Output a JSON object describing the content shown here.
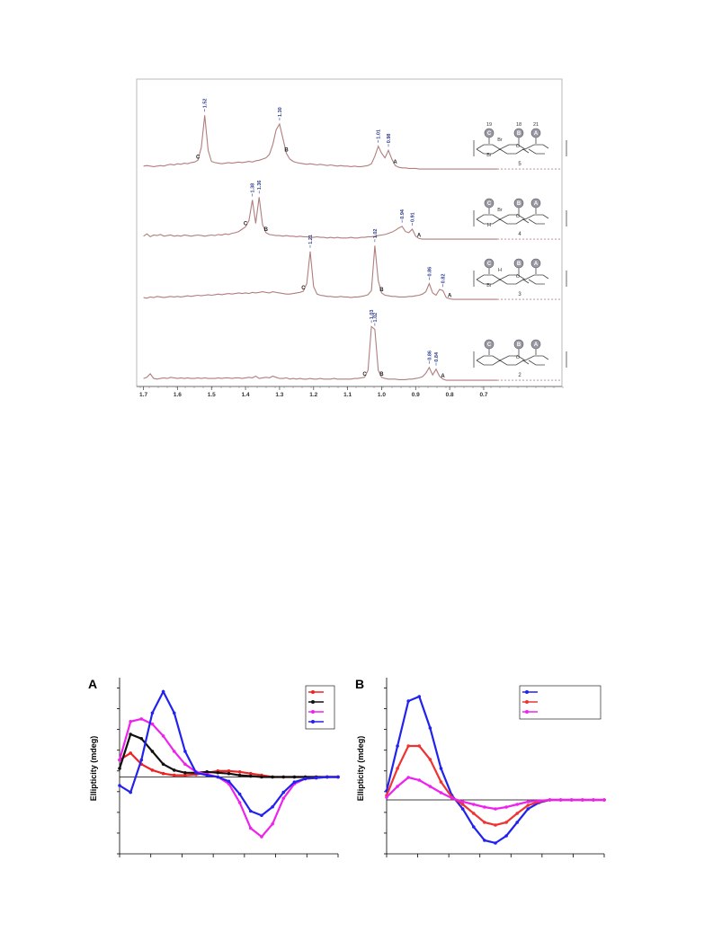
{
  "chart_data": [
    {
      "type": "line",
      "xlim": [
        1.72,
        0.47
      ],
      "xticks": [
        1.7,
        1.6,
        1.5,
        1.4,
        1.3,
        1.2,
        1.1,
        {
          "value": 1,
          "label": "1.0"
        },
        0.9,
        0.8,
        0.7
      ],
      "ylim": [
        0,
        100
      ],
      "structure_groups": [
        "C",
        "B",
        "A"
      ],
      "carbon_numbers": [
        19,
        18,
        21
      ],
      "x": [
        1.7,
        1.69,
        1.68,
        1.67,
        1.66,
        1.65,
        1.64,
        1.63,
        1.62,
        1.61,
        1.6,
        1.59,
        1.58,
        1.57,
        1.56,
        1.55,
        1.54,
        1.53,
        1.52,
        1.51,
        1.5,
        1.49,
        1.48,
        1.47,
        1.46,
        1.45,
        1.44,
        1.43,
        1.42,
        1.41,
        1.4,
        1.39,
        1.38,
        1.37,
        1.36,
        1.35,
        1.34,
        1.33,
        1.32,
        1.31,
        1.3,
        1.29,
        1.28,
        1.27,
        1.26,
        1.25,
        1.24,
        1.23,
        1.22,
        1.21,
        1.2,
        1.19,
        1.18,
        1.17,
        1.16,
        1.15,
        1.14,
        1.13,
        1.12,
        1.11,
        1.1,
        1.09,
        1.08,
        1.07,
        1.06,
        1.05,
        1.04,
        1.03,
        1.02,
        1.01,
        1,
        0.99,
        0.98,
        0.97,
        0.96,
        0.95,
        0.94,
        0.93,
        0.92,
        0.91,
        0.9,
        0.89,
        0.88,
        0.87,
        0.86,
        0.85,
        0.84,
        0.83,
        0.82,
        0.81,
        0.8,
        0.79,
        0.78,
        0.77,
        0.76,
        0.75,
        0.74,
        0.73,
        0.72,
        0.71,
        0.7,
        0.69,
        0.68,
        0.67,
        0.66
      ],
      "series": [
        {
          "compound": 5,
          "color": "#b07f7d",
          "substituents": [
            "Br",
            "Br",
            "O"
          ],
          "peaks": [
            1.52,
            {
              "value": 1.3,
              "label": "1.30"
            },
            1.01,
            0.98
          ],
          "assignments": [
            {
              "value": 1.54,
              "text": "C"
            },
            {
              "value": 1.28,
              "text": "B"
            },
            {
              "value": 0.96,
              "text": "A"
            }
          ],
          "values": [
            8,
            9,
            8,
            7,
            8,
            9,
            8,
            10,
            11,
            10,
            12,
            11,
            13,
            12,
            14,
            15,
            18,
            40,
            95,
            35,
            16,
            14,
            13,
            12,
            13,
            14,
            13,
            14,
            15,
            14,
            15,
            16,
            15,
            17,
            18,
            20,
            22,
            28,
            45,
            70,
            80,
            55,
            30,
            20,
            16,
            14,
            13,
            12,
            11,
            12,
            11,
            10,
            11,
            10,
            9,
            10,
            9,
            8,
            9,
            8,
            8,
            7,
            8,
            7,
            7,
            8,
            9,
            12,
            25,
            42,
            30,
            22,
            35,
            20,
            9,
            6,
            5,
            5,
            4,
            4,
            4,
            3,
            3,
            3,
            3,
            3,
            3,
            3,
            3,
            3,
            3,
            3,
            3,
            3,
            3,
            3,
            3,
            3,
            3,
            3,
            3,
            3,
            3,
            3,
            3
          ]
        },
        {
          "compound": 4,
          "color": "#b07f7d",
          "substituents": [
            "Br",
            "H",
            "O"
          ],
          "peaks": [
            1.38,
            1.36,
            0.94,
            0.91
          ],
          "assignments": [
            {
              "value": 1.4,
              "text": "C"
            },
            {
              "value": 1.34,
              "text": "B"
            },
            {
              "value": 0.89,
              "text": "A"
            }
          ],
          "values": [
            8,
            12,
            7,
            10,
            9,
            11,
            8,
            9,
            10,
            8,
            9,
            8,
            10,
            9,
            8,
            9,
            10,
            9,
            8,
            9,
            10,
            9,
            11,
            10,
            12,
            11,
            13,
            14,
            16,
            20,
            24,
            35,
            70,
            30,
            75,
            28,
            14,
            11,
            10,
            9,
            9,
            8,
            9,
            8,
            8,
            7,
            8,
            7,
            7,
            6,
            6,
            7,
            6,
            6,
            5,
            6,
            5,
            6,
            5,
            5,
            5,
            6,
            5,
            5,
            6,
            6,
            7,
            7,
            8,
            9,
            10,
            11,
            13,
            15,
            18,
            22,
            25,
            16,
            14,
            20,
            8,
            4,
            3,
            3,
            3,
            3,
            3,
            3,
            3,
            3,
            3,
            3,
            3,
            3,
            3,
            3,
            3,
            3,
            3,
            3,
            3,
            3,
            3,
            3,
            3
          ]
        },
        {
          "compound": 3,
          "color": "#b07f7d",
          "substituents": [
            "H",
            "Br",
            "O"
          ],
          "peaks": [
            1.21,
            1.02,
            0.86,
            0.82
          ],
          "assignments": [
            {
              "value": 1.23,
              "text": "C"
            },
            {
              "value": 1.0,
              "text": "B"
            },
            {
              "value": 0.8,
              "text": "A"
            }
          ],
          "values": [
            6,
            5,
            7,
            6,
            8,
            7,
            6,
            7,
            8,
            7,
            8,
            7,
            8,
            9,
            8,
            9,
            10,
            9,
            10,
            11,
            10,
            11,
            12,
            11,
            12,
            13,
            12,
            13,
            14,
            13,
            14,
            13,
            15,
            14,
            15,
            16,
            15,
            14,
            16,
            15,
            14,
            13,
            12,
            12,
            13,
            14,
            15,
            17,
            30,
            85,
            25,
            12,
            10,
            9,
            8,
            8,
            7,
            7,
            8,
            7,
            7,
            6,
            7,
            7,
            8,
            9,
            11,
            18,
            95,
            35,
            14,
            10,
            9,
            8,
            8,
            7,
            7,
            7,
            8,
            8,
            9,
            10,
            12,
            16,
            30,
            14,
            10,
            20,
            18,
            6,
            4,
            3,
            3,
            3,
            3,
            3,
            3,
            3,
            3,
            3,
            3,
            3,
            3,
            3,
            3
          ]
        },
        {
          "compound": 2,
          "color": "#b07f7d",
          "substituents": [
            "O"
          ],
          "peaks": [
            1.03,
            1.02,
            0.86,
            0.84
          ],
          "assignments": [
            {
              "value": 1.05,
              "text": "C"
            },
            {
              "value": 1.0,
              "text": "B"
            },
            {
              "value": 0.82,
              "text": "A"
            }
          ],
          "values": [
            6,
            8,
            14,
            6,
            5,
            6,
            7,
            6,
            8,
            7,
            6,
            7,
            6,
            7,
            6,
            6,
            7,
            6,
            7,
            6,
            6,
            6,
            7,
            6,
            7,
            7,
            6,
            7,
            7,
            6,
            7,
            8,
            7,
            10,
            6,
            7,
            8,
            7,
            10,
            8,
            6,
            6,
            7,
            5,
            6,
            5,
            6,
            5,
            5,
            6,
            5,
            5,
            6,
            5,
            5,
            5,
            6,
            5,
            5,
            5,
            5,
            5,
            6,
            6,
            7,
            8,
            20,
            95,
            90,
            20,
            8,
            6,
            5,
            5,
            5,
            4,
            4,
            4,
            5,
            5,
            6,
            7,
            9,
            15,
            25,
            12,
            22,
            10,
            5,
            3,
            3,
            3,
            3,
            3,
            3,
            3,
            3,
            3,
            3,
            3,
            3,
            3,
            3,
            3,
            3
          ]
        }
      ]
    },
    {
      "type": "line",
      "panel": "A",
      "y_label": "Ellipticity (mdeg)",
      "legend": "upper right",
      "xlim": [
        0,
        100
      ],
      "ylim": [
        -90,
        110
      ],
      "x": [
        0,
        5,
        10,
        15,
        20,
        25,
        30,
        35,
        40,
        45,
        50,
        55,
        60,
        65,
        70,
        75,
        80,
        85,
        90,
        95,
        100
      ],
      "series": [
        {
          "color": "#ee2222",
          "values": [
            20,
            28,
            15,
            8,
            4,
            2,
            2,
            3,
            5,
            7,
            7,
            6,
            4,
            2,
            0,
            0,
            0,
            0,
            0,
            0,
            0
          ]
        },
        {
          "color": "#111111",
          "values": [
            10,
            50,
            45,
            30,
            15,
            8,
            5,
            5,
            6,
            5,
            4,
            2,
            1,
            0,
            0,
            0,
            0,
            0,
            0,
            0,
            0
          ]
        },
        {
          "color": "#ee22ee",
          "values": [
            20,
            65,
            68,
            62,
            48,
            30,
            15,
            6,
            3,
            0,
            -8,
            -30,
            -60,
            -70,
            -55,
            -25,
            -8,
            -2,
            -1,
            0,
            0
          ]
        },
        {
          "color": "#2222ee",
          "values": [
            -10,
            -18,
            20,
            75,
            100,
            75,
            30,
            5,
            2,
            0,
            -5,
            -20,
            -40,
            -45,
            -35,
            -18,
            -6,
            -2,
            -1,
            0,
            0
          ]
        }
      ]
    },
    {
      "type": "line",
      "panel": "B",
      "y_label": "Ellipticity (mdeg)",
      "legend": "upper right",
      "xlim": [
        0,
        100
      ],
      "ylim": [
        -60,
        130
      ],
      "x": [
        0,
        5,
        10,
        15,
        20,
        25,
        30,
        35,
        40,
        45,
        50,
        55,
        60,
        65,
        70,
        75,
        80,
        85,
        90,
        95,
        100
      ],
      "series": [
        {
          "color": "#2222ee",
          "values": [
            10,
            60,
            110,
            115,
            80,
            35,
            5,
            -10,
            -30,
            -45,
            -48,
            -40,
            -25,
            -10,
            -3,
            0,
            0,
            0,
            0,
            0,
            0
          ]
        },
        {
          "color": "#ee3333",
          "values": [
            5,
            35,
            60,
            60,
            45,
            20,
            3,
            -5,
            -15,
            -25,
            -28,
            -25,
            -15,
            -6,
            -2,
            0,
            0,
            0,
            0,
            0,
            0
          ]
        },
        {
          "color": "#ee22ee",
          "values": [
            3,
            15,
            25,
            22,
            15,
            8,
            2,
            -2,
            -5,
            -8,
            -10,
            -8,
            -5,
            -2,
            -1,
            0,
            0,
            0,
            0,
            0,
            0
          ]
        }
      ]
    }
  ]
}
